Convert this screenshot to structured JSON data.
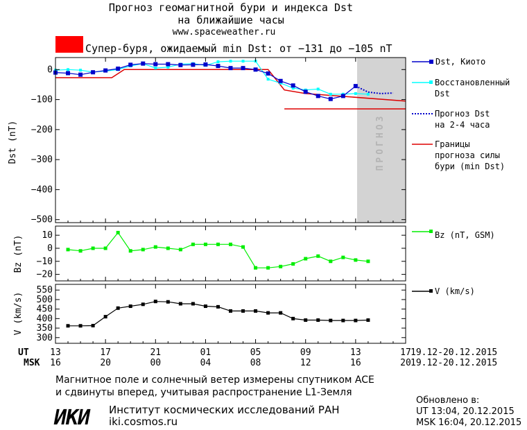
{
  "header": {
    "title_line1": "Прогноз геомагнитной бури и индекса Dst",
    "title_line2": "на ближайшие часы",
    "url": "www.spaceweather.ru",
    "storm_color": "#ff0000",
    "storm_text": "Супер-буря, ожидаемый min Dst: от −131 до −105 nT"
  },
  "forecast_label": "ПРОГНОЗ",
  "legend": {
    "dst_kyoto": "Dst, Киото",
    "restored_1": "Восстановленный",
    "restored_2": "Dst",
    "forecast_1": "Прогноз Dst",
    "forecast_2": "на 2-4 часа",
    "bounds_1": "Границы",
    "bounds_2": "прогноза силы",
    "bounds_3": "бури (min Dst)",
    "bz": "Bz (nT, GSM)",
    "v": "V (km/s)"
  },
  "time_axis": {
    "ut_label": "UT",
    "msk_label": "MSK",
    "ut_ticks": [
      "13",
      "17",
      "21",
      "01",
      "05",
      "09",
      "13",
      "17"
    ],
    "msk_ticks": [
      "16",
      "20",
      "00",
      "04",
      "08",
      "12",
      "16",
      "20"
    ],
    "ut_dates": "19.12-20.12.2015",
    "msk_dates": "19.12-20.12.2015"
  },
  "footer": {
    "line1": "Магнитное поле и солнечный ветер измерены спутником ACE",
    "line2": "и сдвинуты вперед, учитывая распространение L1-Земля",
    "logo": "ИКИ",
    "org": "Институт космических исследований РАН",
    "site": "iki.cosmos.ru",
    "updated_label": "Обновлено в:",
    "updated_ut": "UT  13:04, 20.12.2015",
    "updated_msk": "MSK 16:04, 20.12.2015"
  },
  "colors": {
    "dst_kyoto": "#0000cc",
    "restored": "#00ffff",
    "forecast": "#0000cc",
    "bounds": "#dd0000",
    "bz": "#00ee00",
    "v": "#000000",
    "forecast_zone": "#d3d3d3"
  },
  "chart_data": [
    {
      "type": "line",
      "ylabel": "Dst (nT)",
      "ylim": [
        -510,
        40
      ],
      "yticks": [
        0,
        -100,
        -200,
        -300,
        -400,
        -500
      ],
      "xlim_hours_ut": [
        13,
        41
      ],
      "series": [
        {
          "name": "Dst, Киото",
          "x": [
            13,
            14,
            15,
            16,
            17,
            18,
            19,
            20,
            21,
            22,
            23,
            24,
            25,
            26,
            27,
            28,
            29,
            30,
            31,
            32,
            33,
            34,
            35,
            36,
            37
          ],
          "values": [
            -10,
            -12,
            -17,
            -9,
            -3,
            3,
            16,
            20,
            18,
            18,
            15,
            16,
            17,
            12,
            5,
            5,
            0,
            -13,
            -38,
            -53,
            -74,
            -88,
            -98,
            -88,
            -55
          ]
        },
        {
          "name": "Восстановленный Dst",
          "x": [
            13,
            14,
            15,
            16,
            17,
            18,
            19,
            20,
            21,
            22,
            23,
            24,
            25,
            26,
            27,
            28,
            29,
            30,
            31,
            32,
            33,
            34,
            35,
            36,
            37,
            38
          ],
          "values": [
            -2,
            0,
            -2,
            -8,
            -5,
            0,
            12,
            20,
            5,
            8,
            18,
            20,
            14,
            26,
            28,
            28,
            28,
            -32,
            -45,
            -62,
            -68,
            -65,
            -82,
            -82,
            -80,
            -82
          ]
        },
        {
          "name": "Прогноз Dst на 2-4 часа",
          "x": [
            37,
            38,
            39,
            40
          ],
          "values": [
            -55,
            -75,
            -80,
            -78
          ]
        },
        {
          "name": "Границы прогноза силы бури (min Dst)",
          "x": [
            13,
            17.5,
            18.5,
            30,
            31.3,
            33,
            41
          ],
          "values": [
            -27,
            -27,
            0,
            0,
            -68,
            -80,
            -105
          ]
        },
        {
          "name": "Границы прогноза силы бури (min Dst)",
          "x": [
            31.3,
            41
          ],
          "values": [
            -131,
            -131
          ]
        }
      ],
      "forecast_zone_x": [
        37,
        41
      ]
    },
    {
      "type": "line",
      "ylabel": "Bz (nT)",
      "ylim": [
        -25,
        17
      ],
      "yticks": [
        10,
        0,
        -10,
        -20
      ],
      "series": [
        {
          "name": "Bz (nT, GSM)",
          "x": [
            14,
            15,
            16,
            17,
            18,
            19,
            20,
            21,
            22,
            23,
            24,
            25,
            26,
            27,
            28,
            29,
            30,
            31,
            32,
            33,
            34,
            35,
            36,
            37,
            38
          ],
          "values": [
            -1,
            -2,
            0,
            0,
            12,
            -2,
            -1,
            1,
            0,
            -1,
            3,
            3,
            3,
            3,
            1,
            -15,
            -15,
            -14,
            -12,
            -8,
            -6,
            -10,
            -7,
            -9,
            -10
          ]
        }
      ]
    },
    {
      "type": "line",
      "ylabel": "V (km/s)",
      "ylim": [
        270,
        580
      ],
      "yticks": [
        550,
        500,
        450,
        400,
        350,
        300
      ],
      "series": [
        {
          "name": "V (km/s)",
          "x": [
            14,
            15,
            16,
            17,
            18,
            19,
            20,
            21,
            22,
            23,
            24,
            25,
            26,
            27,
            28,
            29,
            30,
            31,
            32,
            33,
            34,
            35,
            36,
            37,
            38
          ],
          "values": [
            362,
            362,
            363,
            410,
            455,
            465,
            475,
            490,
            488,
            478,
            478,
            465,
            462,
            440,
            440,
            440,
            430,
            430,
            400,
            392,
            392,
            390,
            390,
            390,
            392
          ]
        }
      ]
    }
  ]
}
